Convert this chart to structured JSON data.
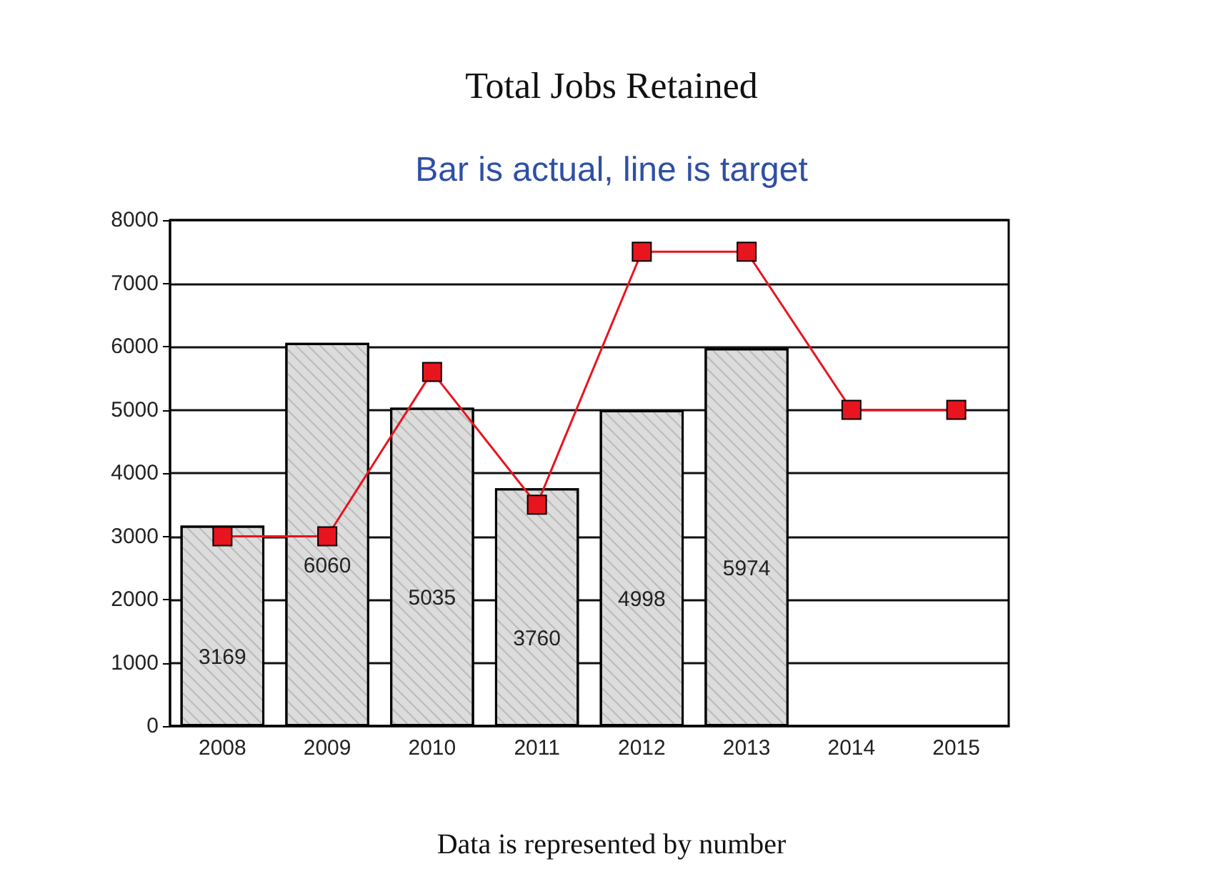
{
  "chart_data": {
    "type": "bar",
    "title": "Total Jobs Retained",
    "subtitle": "Bar is actual, line is target",
    "categories": [
      "2008",
      "2009",
      "2010",
      "2011",
      "2012",
      "2013",
      "2014",
      "2015"
    ],
    "series": [
      {
        "color": "#dcdcdc",
        "values": [
          3169,
          6060,
          5035,
          3760,
          4998,
          5974,
          null,
          null
        ],
        "value_labels": [
          "3169",
          "6060",
          "5035",
          "3760",
          "4998",
          "5974",
          null,
          null
        ]
      },
      {
        "type": "line",
        "color": "#e8141e",
        "values": [
          3000,
          3000,
          5600,
          3500,
          7500,
          7500,
          5000,
          5000
        ],
        "marker": "square"
      }
    ],
    "ylim": [
      0,
      8000
    ],
    "yticks": [
      0,
      1000,
      2000,
      3000,
      4000,
      5000,
      6000,
      7000,
      8000
    ],
    "grid": "y",
    "annotations": [
      "Data is represented by number"
    ]
  }
}
